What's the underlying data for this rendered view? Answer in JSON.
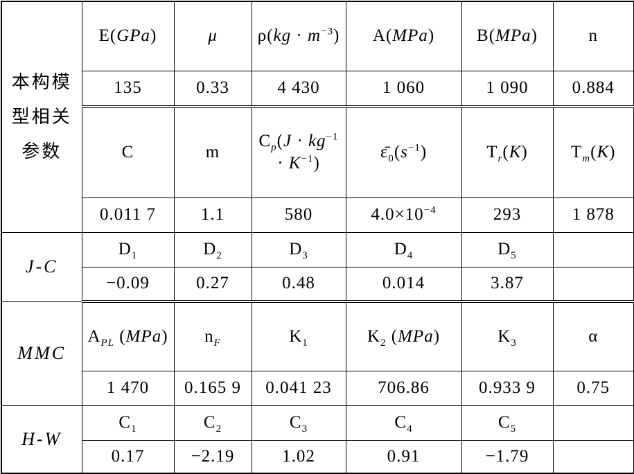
{
  "table": {
    "groups": [
      {
        "label": [
          {
            "text": "本构模型相关参数"
          }
        ],
        "rows": [
          [
            [
              {
                "text": "E("
              },
              {
                "text": "GPa",
                "style": "italic"
              },
              {
                "text": ")"
              }
            ],
            [
              {
                "text": "μ",
                "style": "italic"
              }
            ],
            [
              {
                "text": "ρ("
              },
              {
                "text": "kg",
                "style": "italic"
              },
              {
                "text": " · "
              },
              {
                "text": "m",
                "style": "italic"
              },
              {
                "text": "−3",
                "style": "sup"
              },
              {
                "text": ")"
              }
            ],
            [
              {
                "text": "A("
              },
              {
                "text": "MPa",
                "style": "italic"
              },
              {
                "text": ")"
              }
            ],
            [
              {
                "text": "B("
              },
              {
                "text": "MPa",
                "style": "italic"
              },
              {
                "text": ")"
              }
            ],
            [
              {
                "text": "n"
              }
            ]
          ],
          [
            [
              {
                "text": "135"
              }
            ],
            [
              {
                "text": "0.33"
              }
            ],
            [
              {
                "text": "4 430"
              }
            ],
            [
              {
                "text": "1 060"
              }
            ],
            [
              {
                "text": "1 090"
              }
            ],
            [
              {
                "text": "0.884"
              }
            ]
          ],
          [
            [
              {
                "text": "C"
              }
            ],
            [
              {
                "text": "m"
              }
            ],
            [
              {
                "text": "C"
              },
              {
                "text": "p",
                "style": "sub-italic"
              },
              {
                "text": "("
              },
              {
                "text": "J",
                "style": "italic"
              },
              {
                "text": " · "
              },
              {
                "text": "kg",
                "style": "italic"
              },
              {
                "text": "−1",
                "style": "sup"
              },
              {
                "text": " · "
              },
              {
                "text": "K",
                "style": "italic"
              },
              {
                "text": "−1",
                "style": "sup"
              },
              {
                "text": ")"
              }
            ],
            [
              {
                "text": "ε̄"
              },
              {
                "text": "0",
                "style": "sub"
              },
              {
                "text": "("
              },
              {
                "text": "s",
                "style": "italic"
              },
              {
                "text": "−1",
                "style": "sup"
              },
              {
                "text": ")"
              }
            ],
            [
              {
                "text": "T"
              },
              {
                "text": "r",
                "style": "sub-italic"
              },
              {
                "text": "("
              },
              {
                "text": "K",
                "style": "italic"
              },
              {
                "text": ")"
              }
            ],
            [
              {
                "text": "T"
              },
              {
                "text": "m",
                "style": "sub-italic"
              },
              {
                "text": "("
              },
              {
                "text": "K",
                "style": "italic"
              },
              {
                "text": ")"
              }
            ]
          ],
          [
            [
              {
                "text": "0.011 7"
              }
            ],
            [
              {
                "text": "1.1"
              }
            ],
            [
              {
                "text": "580"
              }
            ],
            [
              {
                "text": "4.0×10"
              },
              {
                "text": "−4",
                "style": "sup"
              }
            ],
            [
              {
                "text": "293"
              }
            ],
            [
              {
                "text": "1 878"
              }
            ]
          ]
        ]
      },
      {
        "label": [
          {
            "text": "J-C",
            "style": "italic"
          }
        ],
        "rows": [
          [
            [
              {
                "text": "D"
              },
              {
                "text": "1",
                "style": "sub"
              }
            ],
            [
              {
                "text": "D"
              },
              {
                "text": "2",
                "style": "sub"
              }
            ],
            [
              {
                "text": "D"
              },
              {
                "text": "3",
                "style": "sub"
              }
            ],
            [
              {
                "text": "D"
              },
              {
                "text": "4",
                "style": "sub"
              }
            ],
            [
              {
                "text": "D"
              },
              {
                "text": "5",
                "style": "sub"
              }
            ],
            null
          ],
          [
            [
              {
                "text": "−0.09"
              }
            ],
            [
              {
                "text": "0.27"
              }
            ],
            [
              {
                "text": "0.48"
              }
            ],
            [
              {
                "text": "0.014"
              }
            ],
            [
              {
                "text": "3.87"
              }
            ],
            null
          ]
        ]
      },
      {
        "label": [
          {
            "text": "MMC",
            "style": "italic"
          }
        ],
        "rows": [
          [
            [
              {
                "text": "A"
              },
              {
                "text": "PL",
                "style": "sub-italic"
              },
              {
                "text": " ("
              },
              {
                "text": "MPa",
                "style": "italic"
              },
              {
                "text": ")"
              }
            ],
            [
              {
                "text": "n"
              },
              {
                "text": "F",
                "style": "sub-italic"
              }
            ],
            [
              {
                "text": "K"
              },
              {
                "text": "1",
                "style": "sub"
              }
            ],
            [
              {
                "text": "K"
              },
              {
                "text": "2",
                "style": "sub"
              },
              {
                "text": " ("
              },
              {
                "text": "MPa",
                "style": "italic"
              },
              {
                "text": ")"
              }
            ],
            [
              {
                "text": "K"
              },
              {
                "text": "3",
                "style": "sub"
              }
            ],
            [
              {
                "text": "α"
              }
            ]
          ],
          [
            [
              {
                "text": "1 470"
              }
            ],
            [
              {
                "text": "0.165 9"
              }
            ],
            [
              {
                "text": "0.041 23"
              }
            ],
            [
              {
                "text": "706.86"
              }
            ],
            [
              {
                "text": "0.933 9"
              }
            ],
            [
              {
                "text": "0.75"
              }
            ]
          ]
        ]
      },
      {
        "label": [
          {
            "text": "H-W",
            "style": "italic"
          }
        ],
        "rows": [
          [
            [
              {
                "text": "C"
              },
              {
                "text": "1",
                "style": "sub"
              }
            ],
            [
              {
                "text": "C"
              },
              {
                "text": "2",
                "style": "sub"
              }
            ],
            [
              {
                "text": "C"
              },
              {
                "text": "3",
                "style": "sub"
              }
            ],
            [
              {
                "text": "C"
              },
              {
                "text": "4",
                "style": "sub"
              }
            ],
            [
              {
                "text": "C"
              },
              {
                "text": "5",
                "style": "sub"
              }
            ],
            null
          ],
          [
            [
              {
                "text": "0.17"
              }
            ],
            [
              {
                "text": "−2.19"
              }
            ],
            [
              {
                "text": "1.02"
              }
            ],
            [
              {
                "text": "0.91"
              }
            ],
            [
              {
                "text": "−1.79"
              }
            ],
            null
          ]
        ]
      }
    ]
  }
}
